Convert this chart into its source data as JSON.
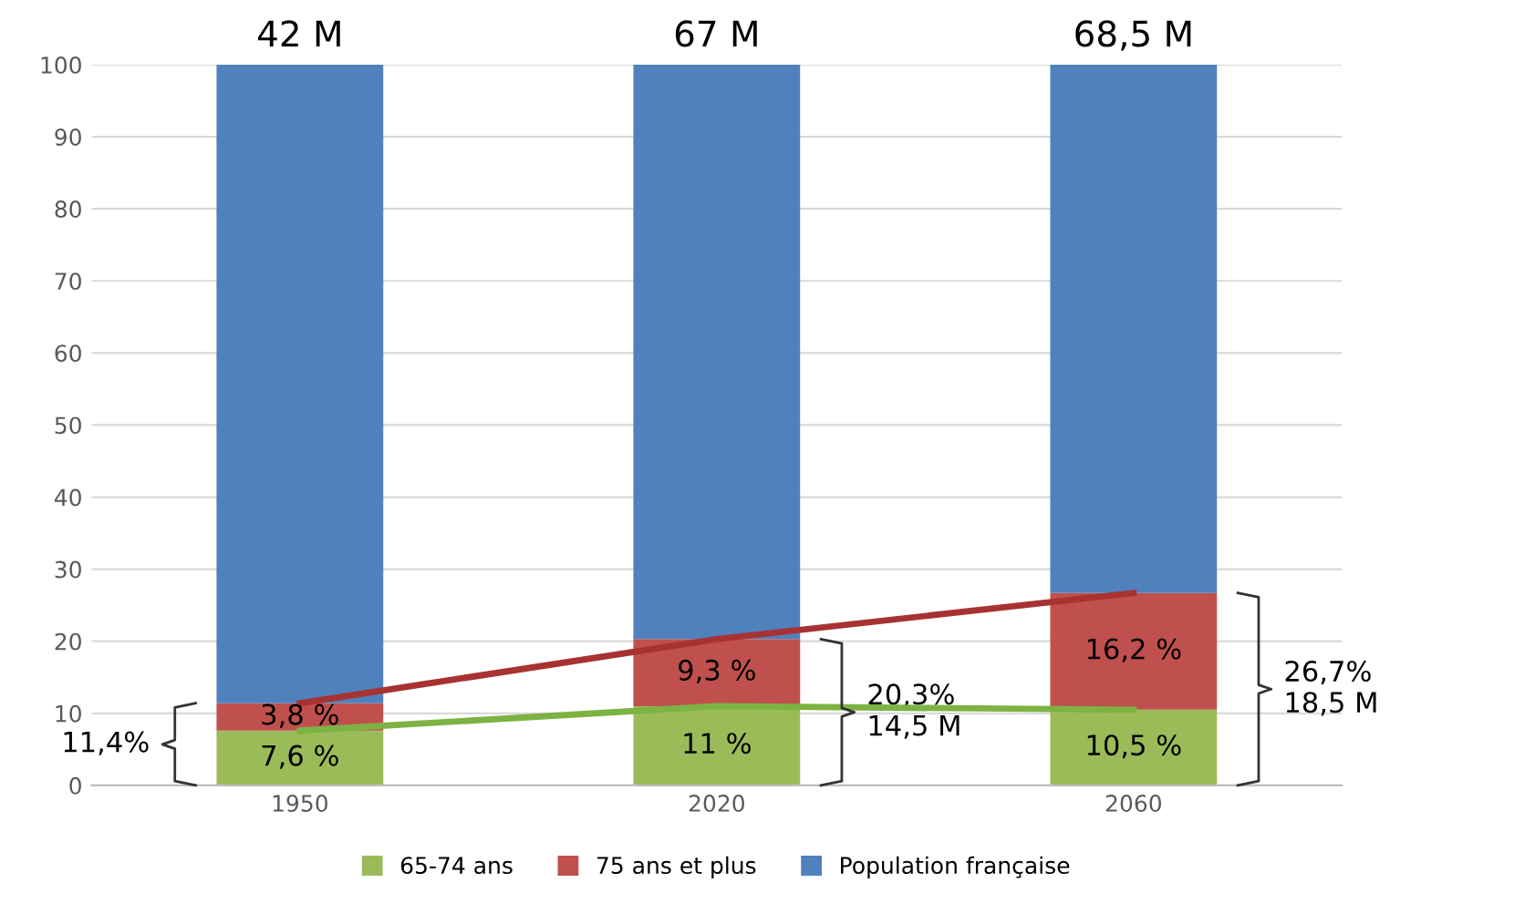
{
  "chart_data": {
    "type": "bar",
    "stacked": true,
    "categories": [
      "1950",
      "2020",
      "2060"
    ],
    "series": [
      {
        "name": "65-74 ans",
        "color": "#9bbb59",
        "values": [
          7.6,
          11,
          10.5
        ],
        "value_labels": [
          "7,6 %",
          "11 %",
          "10,5 %"
        ]
      },
      {
        "name": "75 ans et plus",
        "color": "#c0504d",
        "values": [
          3.8,
          9.3,
          16.2
        ],
        "value_labels": [
          "3,8 %",
          "9,3 %",
          "16,2 %"
        ]
      },
      {
        "name": "Population française",
        "color": "#4f81bd",
        "values": [
          88.6,
          79.7,
          73.3
        ]
      },
      {
        "type": "line",
        "color": "#a83232",
        "values": [
          11.4,
          20.3,
          26.7
        ]
      },
      {
        "type": "line",
        "color": "#7cb342",
        "values": [
          7.6,
          11,
          10.5
        ]
      }
    ],
    "annotations": [
      {
        "text": "42 M",
        "x": "1950",
        "y": 100
      },
      {
        "text": "67 M",
        "x": "2020",
        "y": 100
      },
      {
        "text": "68,5 M",
        "x": "2060",
        "y": 100
      },
      "11,4%",
      "20,3%\n14,5 M",
      "26,7%\n18,5 M"
    ],
    "ylim": [
      0,
      100
    ],
    "yticks": [
      0,
      10,
      20,
      30,
      40,
      50,
      60,
      70,
      80,
      90,
      100
    ],
    "grid": "y",
    "legend": "bottom"
  }
}
